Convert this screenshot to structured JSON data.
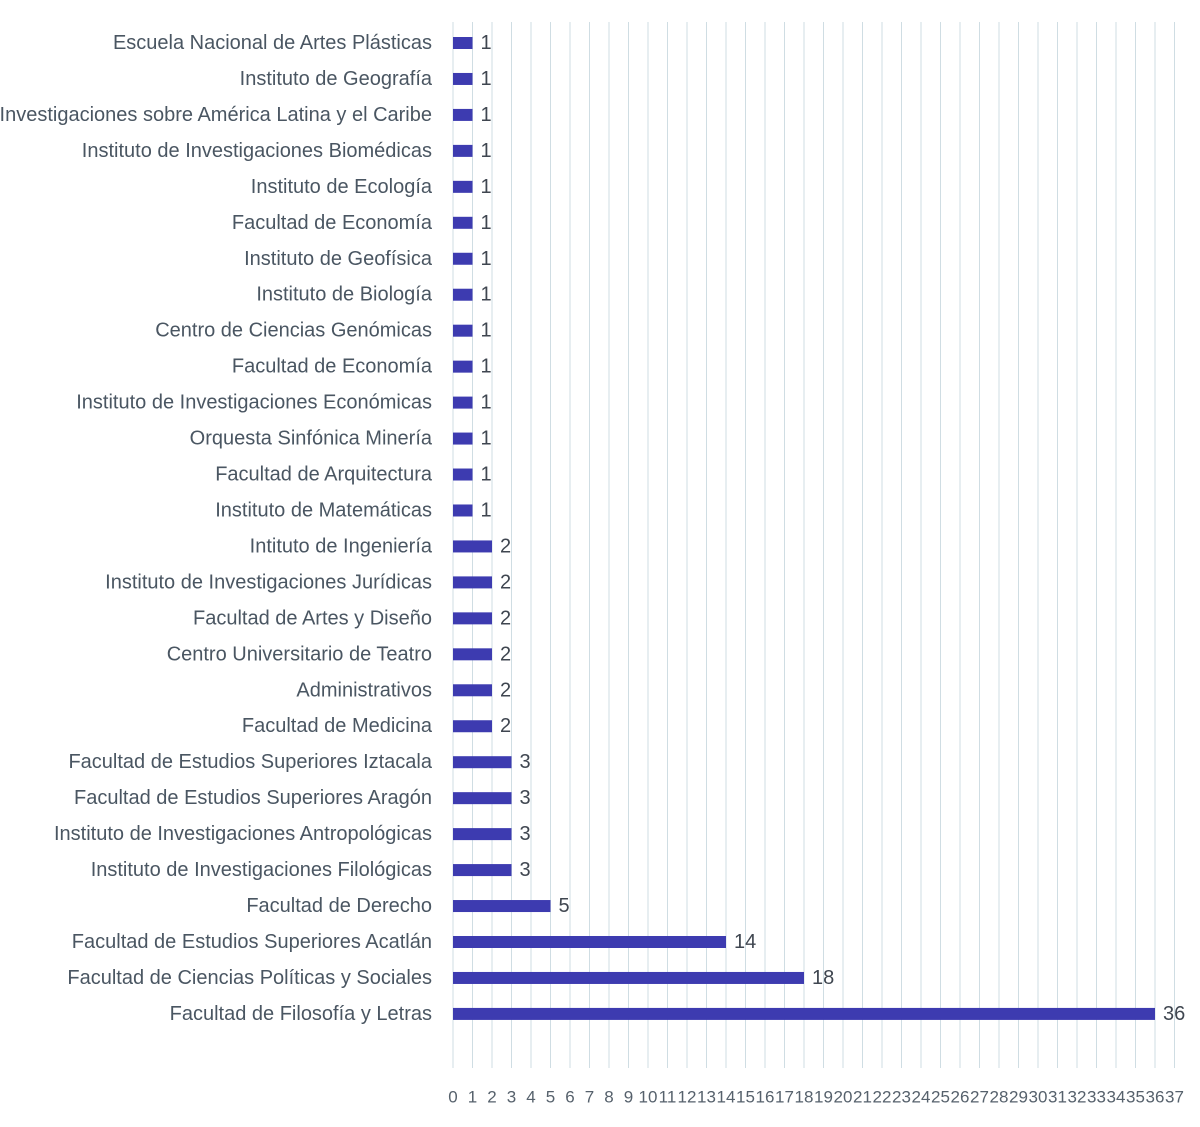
{
  "chart_data": {
    "type": "bar",
    "orientation": "horizontal",
    "title": "",
    "xlabel": "",
    "ylabel": "",
    "xlim": [
      0,
      37
    ],
    "grid": true,
    "legend": "none",
    "colors": {
      "bar": "#3d3bb0",
      "grid": "#cfdde3",
      "label": "#4a5662",
      "value_label": "#3f4650"
    },
    "x_ticks": [
      0,
      1,
      2,
      3,
      4,
      5,
      6,
      7,
      8,
      9,
      10,
      11,
      12,
      13,
      14,
      15,
      16,
      17,
      18,
      19,
      20,
      21,
      22,
      23,
      24,
      25,
      26,
      27,
      28,
      29,
      30,
      31,
      32,
      33,
      34,
      35,
      36,
      37
    ],
    "categories": [
      "Escuela Nacional de Artes Plásticas",
      "Instituto de Geografía",
      "Centro de Investigaciones sobre América Latina y el Caribe",
      "Instituto de Investigaciones Biomédicas",
      "Instituto de Ecología",
      "Facultad de Economía",
      "Instituto de Geofísica",
      "Instituto de Biología",
      "Centro de Ciencias Genómicas",
      "Facultad de Economía",
      "Instituto de Investigaciones Económicas",
      "Orquesta Sinfónica Minería",
      "Facultad de Arquitectura",
      "Instituto de Matemáticas",
      "Intituto de Ingeniería",
      "Instituto de Investigaciones Jurídicas",
      "Facultad de Artes y Diseño",
      "Centro Universitario de Teatro",
      "Administrativos",
      "Facultad de Medicina",
      "Facultad de Estudios Superiores Iztacala",
      "Facultad de Estudios Superiores Aragón",
      "Instituto de Investigaciones Antropológicas",
      "Instituto de Investigaciones Filológicas",
      "Facultad de Derecho",
      "Facultad de Estudios Superiores Acatlán",
      "Facultad de Ciencias Políticas y Sociales",
      "Facultad de Filosofía y Letras"
    ],
    "values": [
      1,
      1,
      1,
      1,
      1,
      1,
      1,
      1,
      1,
      1,
      1,
      1,
      1,
      1,
      2,
      2,
      2,
      2,
      2,
      2,
      3,
      3,
      3,
      3,
      5,
      14,
      18,
      36
    ]
  }
}
